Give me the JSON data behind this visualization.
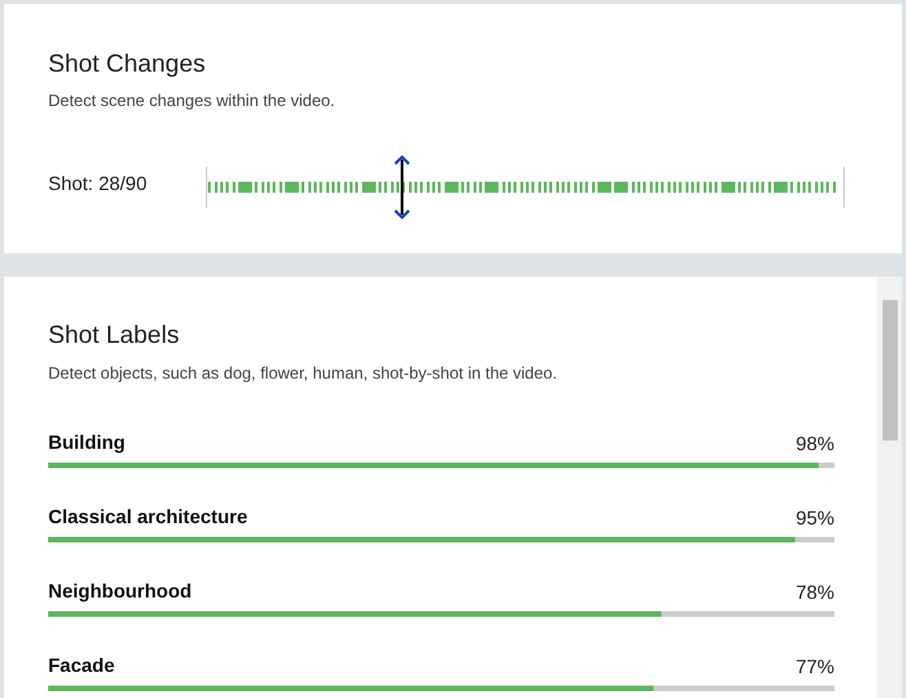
{
  "chart_data": [
    {
      "type": "other",
      "title": "Shot Changes",
      "subtitle": "Detect scene changes within the video.",
      "annotations": [
        "Shot: 28/90"
      ]
    },
    {
      "type": "bar",
      "orientation": "horizontal",
      "title": "Shot Labels",
      "subtitle": "Detect objects, such as dog, flower, human, shot-by-shot in the video.",
      "categories": [
        "Building",
        "Classical architecture",
        "Neighbourhood",
        "Facade"
      ],
      "values": [
        98,
        95,
        78,
        77
      ],
      "color": "#5cb85c",
      "xlim": [
        0,
        100
      ],
      "tick_labels": "y",
      "value_labels": [
        "98%",
        "95%",
        "78%",
        "77%"
      ]
    }
  ]
}
